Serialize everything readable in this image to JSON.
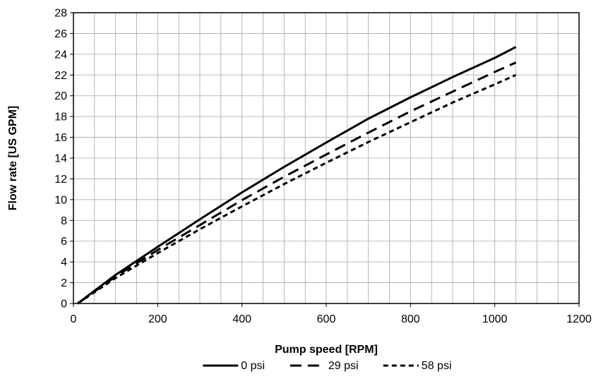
{
  "chart_data": {
    "type": "line",
    "title": "",
    "xlabel": "Pump speed [RPM]",
    "ylabel": "Flow rate [US GPM]",
    "xlim": [
      0,
      1200
    ],
    "ylim": [
      0,
      28
    ],
    "xticks": [
      0,
      200,
      400,
      600,
      800,
      1000,
      1200
    ],
    "yticks": [
      0,
      2,
      4,
      6,
      8,
      10,
      12,
      14,
      16,
      18,
      20,
      22,
      24,
      26,
      28
    ],
    "grid": true,
    "legend_position": "bottom",
    "series": [
      {
        "name": "0 psi",
        "style": "solid",
        "color": "#000000",
        "x": [
          10,
          100,
          200,
          300,
          400,
          500,
          600,
          700,
          800,
          900,
          1000,
          1050
        ],
        "y": [
          0,
          2.75,
          5.45,
          8.1,
          10.7,
          13.15,
          15.5,
          17.8,
          19.85,
          21.8,
          23.65,
          24.7
        ]
      },
      {
        "name": "29 psi",
        "style": "dashed",
        "color": "#000000",
        "x": [
          10,
          100,
          200,
          300,
          400,
          500,
          600,
          700,
          800,
          900,
          1000,
          1050
        ],
        "y": [
          0,
          2.6,
          5.15,
          7.55,
          9.95,
          12.2,
          14.35,
          16.45,
          18.5,
          20.4,
          22.3,
          23.2
        ]
      },
      {
        "name": "58 psi",
        "style": "short-dashed",
        "color": "#000000",
        "x": [
          10,
          100,
          200,
          300,
          400,
          500,
          600,
          700,
          800,
          900,
          1000,
          1050
        ],
        "y": [
          0,
          2.45,
          4.85,
          7.15,
          9.35,
          11.5,
          13.55,
          15.55,
          17.45,
          19.35,
          21.1,
          22.0
        ]
      }
    ]
  }
}
